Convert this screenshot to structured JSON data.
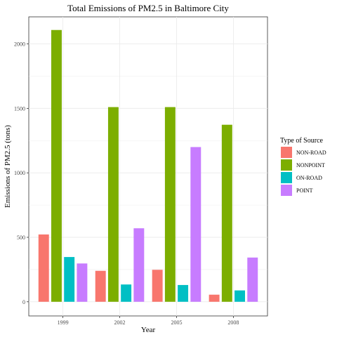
{
  "chart_data": {
    "type": "bar",
    "title": "Total Emissions of PM2.5 in Baltimore City",
    "xlabel": "Year",
    "ylabel": "Emissions of PM2.5 (tons)",
    "categories": [
      "1999",
      "2002",
      "2005",
      "2008"
    ],
    "series": [
      {
        "name": "NON-ROAD",
        "color": "#F8766D",
        "values": [
          522,
          240,
          248,
          55
        ]
      },
      {
        "name": "NONPOINT",
        "color": "#7CAE00",
        "values": [
          2108,
          1510,
          1510,
          1373
        ]
      },
      {
        "name": "ON-ROAD",
        "color": "#00BFC4",
        "values": [
          347,
          134,
          130,
          88
        ]
      },
      {
        "name": "POINT",
        "color": "#C77CFF",
        "values": [
          297,
          570,
          1200,
          343
        ]
      }
    ],
    "ylim": [
      -110,
      2210
    ],
    "yticks": [
      0,
      500,
      1000,
      1500,
      2000
    ],
    "legend": {
      "title": "Type of Source",
      "position": "right"
    },
    "grid": true
  }
}
